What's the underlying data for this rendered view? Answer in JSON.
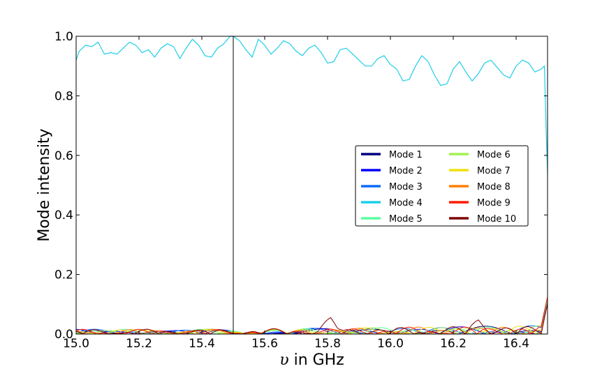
{
  "chart_data": {
    "type": "line",
    "xlabel_symbol": "υ",
    "xlabel_text": " in GHz",
    "ylabel": "Mode intensity",
    "xlim": [
      15.0,
      16.5
    ],
    "ylim": [
      0.0,
      1.0
    ],
    "xticks": [
      "15.0",
      "15.2",
      "15.4",
      "15.6",
      "15.8",
      "16.0",
      "16.2",
      "16.4"
    ],
    "yticks": [
      "0.0",
      "0.2",
      "0.4",
      "0.6",
      "0.8",
      "1.0"
    ],
    "grid": false,
    "legend_position": "center-right",
    "vertical_line_x": 15.5,
    "series": [
      {
        "name": "Mode 1",
        "color": "#00007f"
      },
      {
        "name": "Mode 2",
        "color": "#0000ff"
      },
      {
        "name": "Mode 3",
        "color": "#0a6cff"
      },
      {
        "name": "Mode 4",
        "color": "#1ccfe8",
        "x": [
          15.0,
          15.01,
          15.03,
          15.05,
          15.07,
          15.09,
          15.11,
          15.13,
          15.15,
          15.17,
          15.19,
          15.21,
          15.23,
          15.25,
          15.27,
          15.29,
          15.31,
          15.33,
          15.35,
          15.37,
          15.39,
          15.41,
          15.43,
          15.45,
          15.47,
          15.49,
          15.5,
          15.52,
          15.54,
          15.56,
          15.58,
          15.6,
          15.62,
          15.64,
          15.66,
          15.68,
          15.7,
          15.72,
          15.74,
          15.76,
          15.78,
          15.8,
          15.82,
          15.84,
          15.86,
          15.88,
          15.9,
          15.92,
          15.94,
          15.96,
          15.98,
          16.0,
          16.02,
          16.04,
          16.06,
          16.08,
          16.1,
          16.12,
          16.14,
          16.16,
          16.18,
          16.2,
          16.22,
          16.24,
          16.26,
          16.28,
          16.3,
          16.32,
          16.34,
          16.36,
          16.38,
          16.4,
          16.42,
          16.44,
          16.46,
          16.48,
          16.49,
          16.495,
          16.5
        ],
        "y": [
          0.92,
          0.95,
          0.97,
          0.965,
          0.98,
          0.94,
          0.945,
          0.94,
          0.96,
          0.98,
          0.97,
          0.945,
          0.955,
          0.93,
          0.96,
          0.975,
          0.965,
          0.925,
          0.96,
          0.99,
          0.97,
          0.935,
          0.93,
          0.96,
          0.975,
          1.0,
          1.0,
          0.985,
          0.955,
          0.93,
          0.99,
          0.97,
          0.94,
          0.96,
          0.985,
          0.975,
          0.95,
          0.935,
          0.96,
          0.97,
          0.945,
          0.91,
          0.915,
          0.955,
          0.96,
          0.94,
          0.92,
          0.9,
          0.9,
          0.925,
          0.935,
          0.905,
          0.89,
          0.85,
          0.855,
          0.9,
          0.935,
          0.915,
          0.87,
          0.835,
          0.84,
          0.89,
          0.915,
          0.88,
          0.85,
          0.875,
          0.91,
          0.92,
          0.895,
          0.87,
          0.86,
          0.9,
          0.92,
          0.91,
          0.88,
          0.89,
          0.9,
          0.7,
          0.54
        ]
      },
      {
        "name": "Mode 5",
        "color": "#5affa0"
      },
      {
        "name": "Mode 6",
        "color": "#a4f250"
      },
      {
        "name": "Mode 7",
        "color": "#f0e010"
      },
      {
        "name": "Mode 8",
        "color": "#ff8000"
      },
      {
        "name": "Mode 9",
        "color": "#ff1a00"
      },
      {
        "name": "Mode 10",
        "color": "#7f0000"
      }
    ]
  }
}
